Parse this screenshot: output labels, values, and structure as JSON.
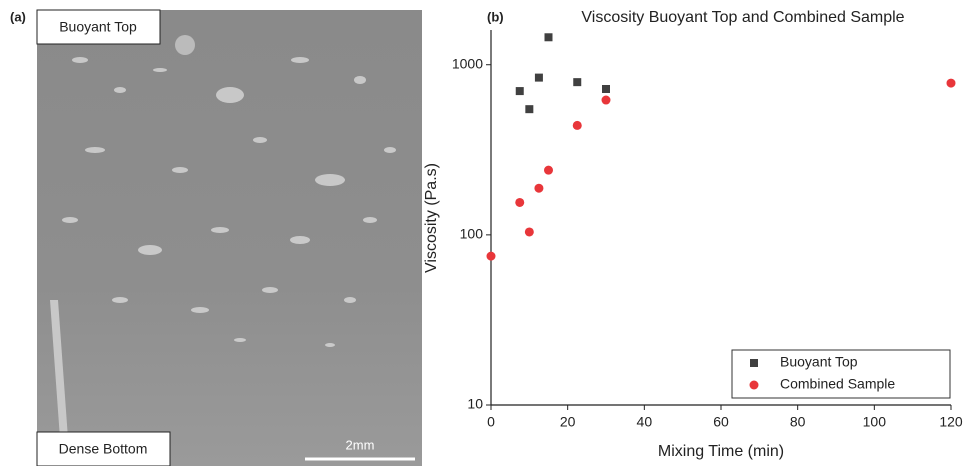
{
  "image_panel": {
    "label": "(a)",
    "top_label": "Buoyant Top",
    "bottom_label": "Dense Bottom",
    "scale_bar": "2mm"
  },
  "chart_data": {
    "type": "scatter",
    "panel_label": "(b)",
    "title": "Viscosity Buoyant Top and Combined Sample",
    "x_label": "Mixing Time (min)",
    "y_label": "Viscosity (Pa.s)",
    "xlim": [
      0,
      120
    ],
    "xticks": [
      0,
      20,
      40,
      60,
      80,
      100,
      120
    ],
    "ylim": [
      10,
      1600
    ],
    "yticks": [
      10,
      100,
      1000
    ],
    "y_log": true,
    "legend": "bottom-right",
    "series": [
      {
        "name": "Buoyant Top",
        "color": "#404040",
        "marker": "square",
        "x": [
          7.5,
          10,
          12.5,
          15,
          22.5,
          30
        ],
        "values": [
          700,
          548,
          840,
          1450,
          790,
          720
        ]
      },
      {
        "name": "Combined Sample",
        "color": "#e8363a",
        "marker": "circle",
        "x": [
          0,
          7.5,
          10,
          12.5,
          15,
          22.5,
          30,
          120
        ],
        "values": [
          75,
          155,
          104,
          188,
          240,
          440,
          620,
          780
        ]
      }
    ]
  }
}
